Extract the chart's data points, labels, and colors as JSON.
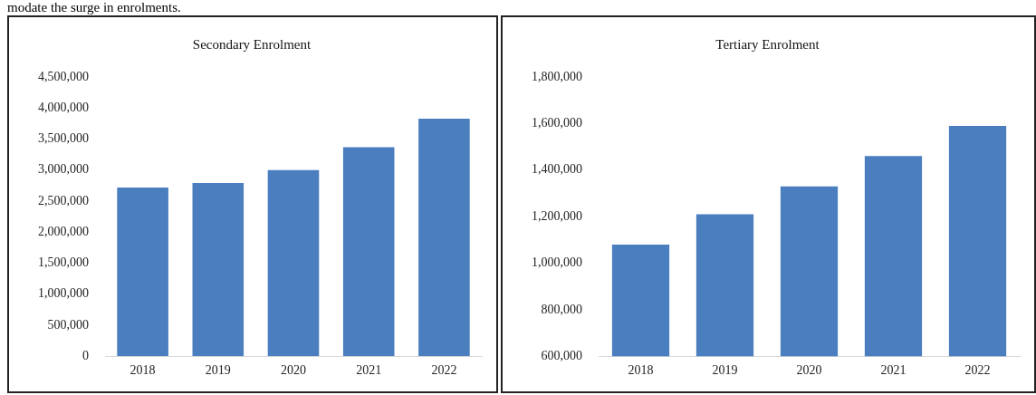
{
  "chart_data": [
    {
      "type": "bar",
      "title": "Secondary Enrolment",
      "categories": [
        "2018",
        "2019",
        "2020",
        "2021",
        "2022"
      ],
      "values": [
        2720000,
        2790000,
        3000000,
        3370000,
        3830000
      ],
      "color": "#4a7ebf",
      "ylim": [
        0,
        4500000
      ],
      "yticks": [
        0,
        {
          "value": 500000,
          "label": "500,000"
        },
        {
          "value": 1000000,
          "label": "1,000,000"
        },
        {
          "value": 1500000,
          "label": "1,500,000"
        },
        {
          "value": 2000000,
          "label": "2,000,000"
        },
        {
          "value": 2500000,
          "label": "2,500,000"
        },
        {
          "value": 3000000,
          "label": "3,000,000"
        },
        {
          "value": 3500000,
          "label": "3,500,000"
        },
        {
          "value": 4000000,
          "label": "4,000,000"
        },
        {
          "value": 4500000,
          "label": "4,500,000"
        }
      ],
      "grid": false,
      "legend": false,
      "annotations": [
        "modate the surge in enrolments."
      ]
    },
    {
      "type": "bar",
      "title": "Tertiary Enrolment",
      "categories": [
        "2018",
        "2019",
        "2020",
        "2021",
        "2022"
      ],
      "values": [
        1080000,
        1210000,
        1330000,
        1460000,
        1590000
      ],
      "color": "#4a7ebf",
      "ylim": [
        600000,
        1800000
      ],
      "yticks": [
        {
          "value": 600000,
          "label": "600,000"
        },
        {
          "value": 800000,
          "label": "800,000"
        },
        {
          "value": 1000000,
          "label": "1,000,000"
        },
        {
          "value": 1200000,
          "label": "1,200,000"
        },
        {
          "value": 1400000,
          "label": "1,400,000"
        },
        {
          "value": 1600000,
          "label": "1,600,000"
        },
        {
          "value": 1800000,
          "label": "1,800,000"
        }
      ],
      "grid": false,
      "legend": false
    }
  ]
}
